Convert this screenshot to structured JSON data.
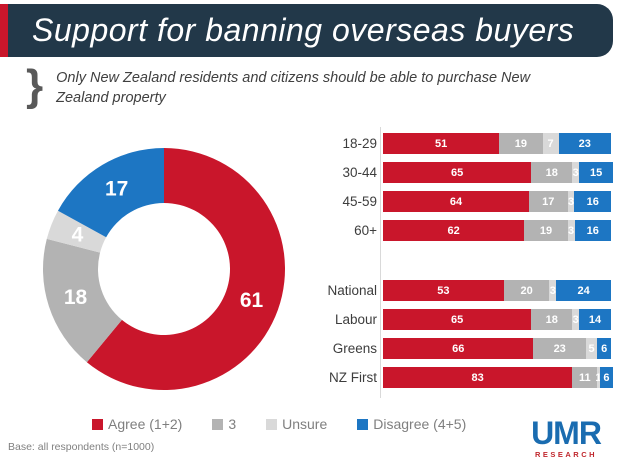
{
  "title": "Support for banning overseas buyers",
  "subtitle": "Only New Zealand residents and citizens should be able to purchase New Zealand property",
  "footer": {
    "base_note": "Base: all respondents (n=1000)"
  },
  "logo": {
    "name": "UMR",
    "sub": "RESEARCH"
  },
  "colors": {
    "navy": "#223849",
    "agree": "#c9162b",
    "three": "#b3b3b3",
    "unsure": "#d9d9d9",
    "disagree": "#1d76c3"
  },
  "legend": [
    {
      "label": "Agree (1+2)",
      "color": "#c9162b"
    },
    {
      "label": "3",
      "color": "#b3b3b3"
    },
    {
      "label": "Unsure",
      "color": "#d9d9d9"
    },
    {
      "label": "Disagree (4+5)",
      "color": "#1d76c3"
    }
  ],
  "chart_data": [
    {
      "type": "pie",
      "subtype": "donut",
      "categories": [
        "Agree (1+2)",
        "3",
        "Unsure",
        "Disagree (4+5)"
      ],
      "values": [
        61,
        18,
        4,
        17
      ],
      "colors": [
        "#c9162b",
        "#b3b3b3",
        "#d9d9d9",
        "#1d76c3"
      ],
      "start_angle_deg": 0,
      "direction": "clockwise",
      "labels_shown": [
        "61",
        "18",
        "4",
        "17"
      ]
    },
    {
      "type": "bar",
      "subtype": "horizontal-stacked",
      "series_names": [
        "Agree (1+2)",
        "3",
        "Unsure",
        "Disagree (4+5)"
      ],
      "colors": [
        "#c9162b",
        "#b3b3b3",
        "#d9d9d9",
        "#1d76c3"
      ],
      "xlim": [
        0,
        100
      ],
      "groups": [
        {
          "rows": [
            {
              "label": "18-29",
              "values": [
                51,
                19,
                7,
                23
              ]
            },
            {
              "label": "30-44",
              "values": [
                65,
                18,
                3,
                15
              ]
            },
            {
              "label": "45-59",
              "values": [
                64,
                17,
                3,
                16
              ]
            },
            {
              "label": "60+",
              "values": [
                62,
                19,
                3,
                16
              ]
            }
          ]
        },
        {
          "rows": [
            {
              "label": "National",
              "values": [
                53,
                20,
                3,
                24
              ]
            },
            {
              "label": "Labour",
              "values": [
                65,
                18,
                3,
                14
              ]
            },
            {
              "label": "Greens",
              "values": [
                66,
                23,
                5,
                6
              ]
            },
            {
              "label": "NZ First",
              "values": [
                83,
                11,
                1,
                6
              ]
            }
          ]
        }
      ]
    }
  ]
}
